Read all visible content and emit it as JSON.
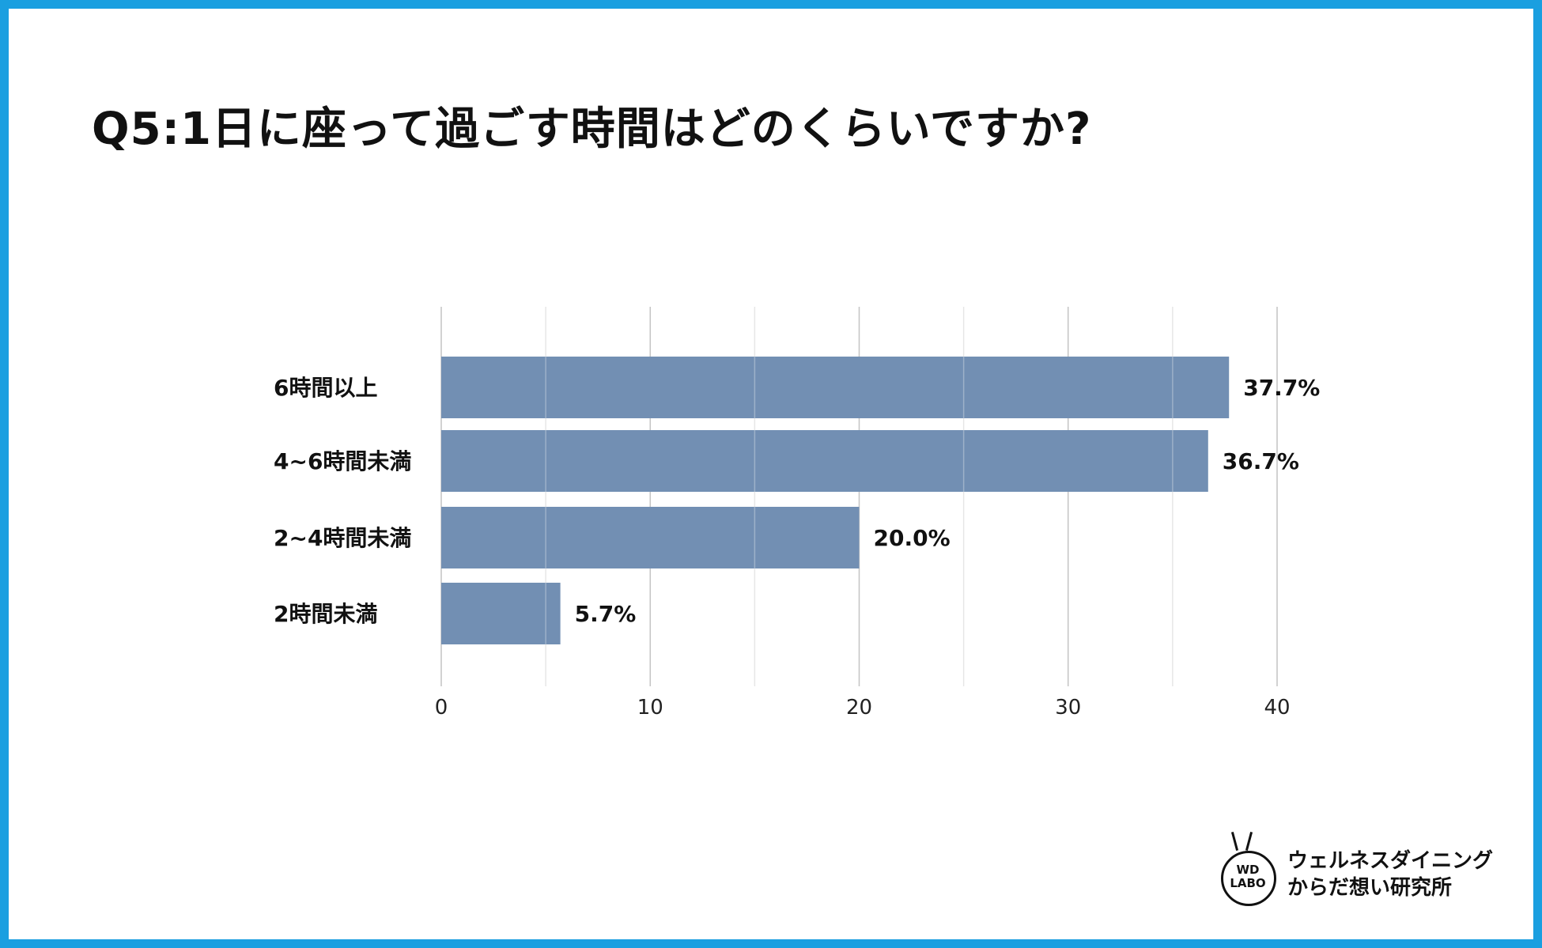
{
  "title": "Q5:1日に座って過ごす時間はどのくらいですか?",
  "chart_data": {
    "type": "bar",
    "orientation": "horizontal",
    "categories": [
      "6時間以上",
      "4~6時間未満",
      "2~4時間未満",
      "2時間未満"
    ],
    "values": [
      37.7,
      36.7,
      20.0,
      5.7
    ],
    "value_labels": [
      "37.7%",
      "36.7%",
      "20.0%",
      "5.7%"
    ],
    "xticks": [
      "0",
      "10",
      "20",
      "30",
      "40"
    ],
    "xlim": [
      0,
      40
    ],
    "grid": true,
    "bar_color": "#728fb3"
  },
  "logo": {
    "mark_line1": "WD",
    "mark_line2": "LABO",
    "text_line1": "ウェルネスダイニング",
    "text_line2": "からだ想い研究所"
  }
}
